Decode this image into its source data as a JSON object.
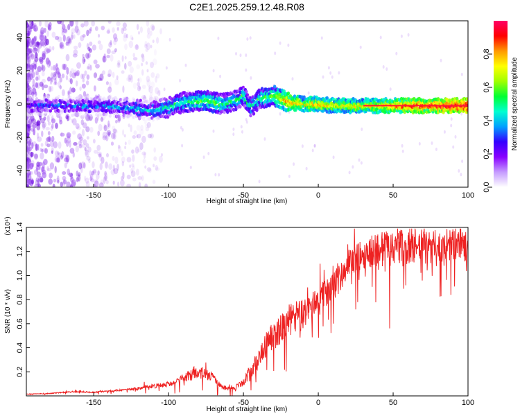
{
  "title": "C2E1.2025.259.12.48.R08",
  "colors": {
    "snr_line": "#ee2222",
    "noise": "#9a4df0",
    "band_edge": "#6600dd"
  },
  "chart_data": [
    {
      "type": "heatmap",
      "xlabel": "Height of straight line (km)",
      "ylabel": "Frequency (Hz)",
      "xlim": [
        -195,
        100
      ],
      "ylim": [
        -50,
        50
      ],
      "x_ticks": [
        "-150",
        "-100",
        "-50",
        "0",
        "50",
        "100"
      ],
      "y_ticks": [
        "-40",
        "-20",
        "0",
        "20",
        "40"
      ],
      "colorbar": {
        "label": "Normalized spectral amplitude",
        "range": [
          0,
          1
        ],
        "ticks": [
          "0.0",
          "0.2",
          "0.4",
          "0.6",
          "0.8"
        ],
        "colormap": [
          "#ffffff",
          "#c59bff",
          "#8800ff",
          "#3300ff",
          "#00a0ff",
          "#00ffd0",
          "#00ff33",
          "#a0ff00",
          "#ffff00",
          "#ff9900",
          "#ff0000",
          "#ff0066"
        ]
      },
      "ridge": [
        {
          "x": -195,
          "y": -1,
          "a": 0.25
        },
        {
          "x": -160,
          "y": -1,
          "a": 0.3
        },
        {
          "x": -130,
          "y": -2,
          "a": 0.35
        },
        {
          "x": -110,
          "y": -4,
          "a": 0.4
        },
        {
          "x": -100,
          "y": -2,
          "a": 0.45
        },
        {
          "x": -90,
          "y": 1,
          "a": 0.5
        },
        {
          "x": -75,
          "y": 2,
          "a": 0.55
        },
        {
          "x": -65,
          "y": 0,
          "a": 0.5
        },
        {
          "x": -55,
          "y": 2,
          "a": 0.45
        },
        {
          "x": -50,
          "y": 5,
          "a": 0.5
        },
        {
          "x": -45,
          "y": -2,
          "a": 0.45
        },
        {
          "x": -40,
          "y": 3,
          "a": 0.5
        },
        {
          "x": -30,
          "y": 5,
          "a": 0.55
        },
        {
          "x": -20,
          "y": 1,
          "a": 0.8
        },
        {
          "x": -10,
          "y": 0,
          "a": 0.7
        },
        {
          "x": 0,
          "y": 0,
          "a": 0.75
        },
        {
          "x": 10,
          "y": -1,
          "a": 0.7
        },
        {
          "x": 30,
          "y": -1,
          "a": 0.7
        },
        {
          "x": 60,
          "y": -1,
          "a": 0.85
        },
        {
          "x": 100,
          "y": -1,
          "a": 0.95
        }
      ]
    },
    {
      "type": "line",
      "xlabel": "Height of straight line (km)",
      "ylabel": "SNR (10 * v/v)",
      "scale_label": "(x10⁴)",
      "xlim": [
        -195,
        100
      ],
      "ylim": [
        0,
        1.4
      ],
      "x_ticks": [
        "-150",
        "-100",
        "-50",
        "0",
        "50",
        "100"
      ],
      "y_ticks": [
        "0.2",
        "0.4",
        "0.6",
        "0.8",
        "1.0",
        "1.2",
        "1.4"
      ],
      "series": [
        {
          "x": [
            -195,
            -180,
            -170,
            -160,
            -150,
            -140,
            -130,
            -120,
            -110,
            -100,
            -95,
            -90,
            -85,
            -80,
            -75,
            -70,
            -65,
            -60,
            -55,
            -50,
            -45,
            -40,
            -35,
            -30,
            -25,
            -20,
            -15,
            -10,
            -5,
            0,
            5,
            10,
            15,
            20,
            25,
            30,
            35,
            40,
            45,
            50,
            55,
            60,
            65,
            70,
            75,
            80,
            85,
            90,
            95,
            100
          ],
          "y": [
            0.015,
            0.02,
            0.03,
            0.035,
            0.03,
            0.04,
            0.05,
            0.06,
            0.08,
            0.1,
            0.12,
            0.15,
            0.18,
            0.2,
            0.18,
            0.15,
            0.08,
            0.06,
            0.07,
            0.12,
            0.2,
            0.3,
            0.42,
            0.5,
            0.55,
            0.62,
            0.66,
            0.68,
            0.74,
            0.82,
            0.86,
            0.9,
            1.0,
            1.1,
            1.14,
            1.18,
            1.2,
            1.22,
            1.22,
            1.24,
            1.25,
            1.22,
            1.24,
            1.24,
            1.23,
            1.25,
            1.24,
            1.26,
            1.25,
            1.25
          ],
          "noise_amp": [
            0.005,
            0.008,
            0.01,
            0.015,
            0.012,
            0.015,
            0.02,
            0.03,
            0.04,
            0.05,
            0.06,
            0.09,
            0.12,
            0.12,
            0.1,
            0.08,
            0.05,
            0.04,
            0.05,
            0.1,
            0.16,
            0.2,
            0.24,
            0.26,
            0.28,
            0.3,
            0.3,
            0.28,
            0.25,
            0.24,
            0.24,
            0.26,
            0.28,
            0.28,
            0.26,
            0.26,
            0.3,
            0.34,
            0.34,
            0.34,
            0.32,
            0.3,
            0.34,
            0.34,
            0.3,
            0.3,
            0.28,
            0.3,
            0.3,
            0.3
          ]
        }
      ]
    }
  ]
}
